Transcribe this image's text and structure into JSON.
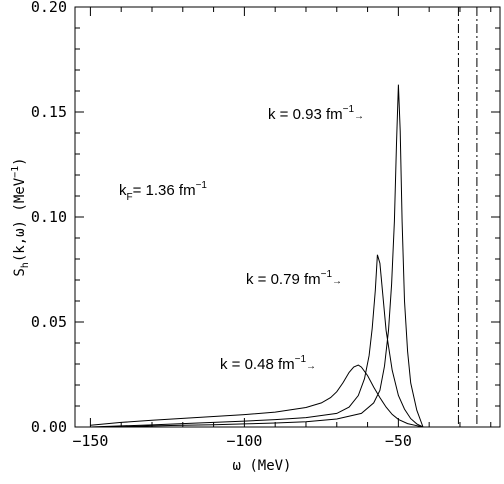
{
  "chart_data": {
    "type": "line",
    "xlabel": "ω (MeV)",
    "ylabel": "S_h(k,ω) (MeV^-1)",
    "xlim": [
      -155,
      -17
    ],
    "ylim": [
      0,
      0.2
    ],
    "x_ticks": [
      {
        "value": -150,
        "label": "−150"
      },
      {
        "value": -100,
        "label": "−100"
      },
      {
        "value": -50,
        "label": "−50"
      }
    ],
    "y_ticks": [
      {
        "value": 0.0,
        "label": "0.00"
      },
      {
        "value": 0.05,
        "label": "0.05"
      },
      {
        "value": 0.1,
        "label": "0.10"
      },
      {
        "value": 0.15,
        "label": "0.15"
      },
      {
        "value": 0.2,
        "label": "0.20"
      }
    ],
    "grid": false,
    "series": [
      {
        "label_k": "0.48",
        "x": [
          -150,
          -140,
          -130,
          -120,
          -110,
          -100,
          -90,
          -80,
          -75,
          -72,
          -70,
          -68,
          -66,
          -64.5,
          -63,
          -62,
          -60,
          -58,
          -56,
          -54,
          -52,
          -50,
          -47,
          -44,
          -42
        ],
        "y": [
          0.0008,
          0.0022,
          0.0032,
          0.0041,
          0.005,
          0.0059,
          0.0071,
          0.0093,
          0.0115,
          0.014,
          0.0168,
          0.021,
          0.026,
          0.0285,
          0.0295,
          0.0285,
          0.0245,
          0.019,
          0.014,
          0.0095,
          0.006,
          0.0036,
          0.0016,
          0.0006,
          0
        ]
      },
      {
        "label_k": "0.79",
        "x": [
          -150,
          -140,
          -130,
          -120,
          -110,
          -100,
          -90,
          -80,
          -70,
          -66,
          -63,
          -61,
          -59.5,
          -58.5,
          -57.5,
          -56.8,
          -56,
          -55,
          -54,
          -52,
          -50,
          -48,
          -46,
          -44,
          -42
        ],
        "y": [
          0,
          0.0005,
          0.001,
          0.0016,
          0.0022,
          0.0028,
          0.0035,
          0.0045,
          0.0065,
          0.0095,
          0.015,
          0.023,
          0.034,
          0.047,
          0.065,
          0.082,
          0.078,
          0.062,
          0.046,
          0.027,
          0.015,
          0.0085,
          0.004,
          0.0015,
          0
        ]
      },
      {
        "label_k": "0.93",
        "x": [
          -150,
          -140,
          -130,
          -120,
          -110,
          -100,
          -90,
          -80,
          -70,
          -62,
          -58,
          -56,
          -54.5,
          -53.2,
          -52.2,
          -51.3,
          -50.6,
          -50,
          -49.4,
          -48.8,
          -48,
          -47,
          -46,
          -44,
          -42
        ],
        "y": [
          0,
          0.0002,
          0.0005,
          0.0008,
          0.0011,
          0.0015,
          0.0019,
          0.0025,
          0.0038,
          0.0065,
          0.0115,
          0.0175,
          0.029,
          0.046,
          0.068,
          0.098,
          0.135,
          0.163,
          0.141,
          0.098,
          0.06,
          0.036,
          0.021,
          0.008,
          0
        ]
      }
    ],
    "vertical_lines": [
      -30.5,
      -24.5
    ],
    "annotations": {
      "kf": {
        "prefix": "k",
        "sub": "F",
        "eq": "= 1.36 fm",
        "sup": "−1"
      },
      "k093": {
        "text": "k = 0.93 fm",
        "sup": "−1",
        "arrow": "→"
      },
      "k079": {
        "text": "k = 0.79 fm",
        "sup": "−1",
        "arrow": "→"
      },
      "k048": {
        "text": "k = 0.48 fm",
        "sup": "−1",
        "arrow": "→"
      }
    }
  }
}
